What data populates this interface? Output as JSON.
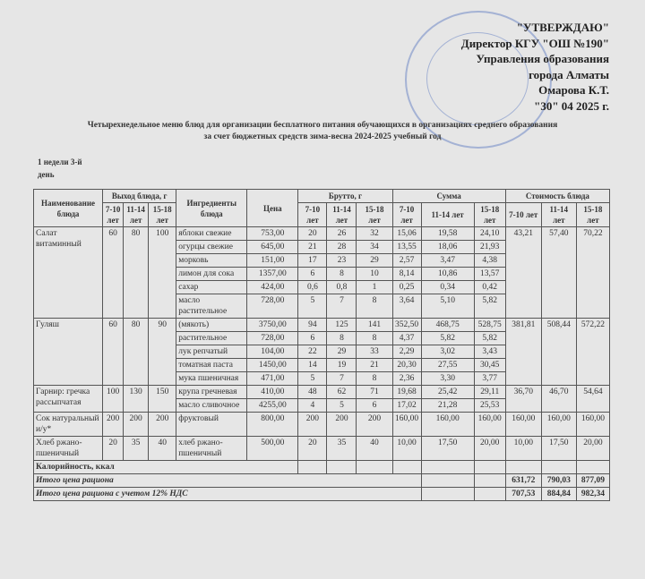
{
  "approval": {
    "line1": "\"УТВЕРЖДАЮ\"",
    "line2": "Директор КГУ \"ОШ №190\"",
    "line3": "Управления образования",
    "line4": "города Алматы",
    "line5": "Омарова К.Т.",
    "line6": "\"30\" 04 2025 г."
  },
  "title": {
    "line1": "Четырехнедельное меню блюд для организации бесплатного питания обучающихся в организациях среднего образования",
    "line2": "за счет бюджетных средств зима-весна 2024-2025 учебный год"
  },
  "day_label": "1 недели 3-й день",
  "headers": {
    "name": "Наименование блюда",
    "output": "Выход блюда, г",
    "ingredients": "Ингредиенты блюда",
    "price": "Цена",
    "brutto": "Брутто, г",
    "sum": "Сумма",
    "cost": "Стоимость блюда",
    "ages": [
      "7-10 лет",
      "11-14 лет",
      "15-18 лет"
    ]
  },
  "dishes": [
    {
      "name": "Салат витаминный",
      "output": [
        "60",
        "80",
        "100"
      ],
      "cost": [
        "43,21",
        "57,40",
        "70,22"
      ],
      "ingredients": [
        {
          "name": "яблоки свежие",
          "price": "753,00",
          "brutto": [
            "20",
            "26",
            "32"
          ],
          "sum": [
            "15,06",
            "19,58",
            "24,10"
          ]
        },
        {
          "name": "огурцы свежие",
          "price": "645,00",
          "brutto": [
            "21",
            "28",
            "34"
          ],
          "sum": [
            "13,55",
            "18,06",
            "21,93"
          ]
        },
        {
          "name": "морковь",
          "price": "151,00",
          "brutto": [
            "17",
            "23",
            "29"
          ],
          "sum": [
            "2,57",
            "3,47",
            "4,38"
          ]
        },
        {
          "name": "лимон для сока",
          "price": "1357,00",
          "brutto": [
            "6",
            "8",
            "10"
          ],
          "sum": [
            "8,14",
            "10,86",
            "13,57"
          ]
        },
        {
          "name": "сахар",
          "price": "424,00",
          "brutto": [
            "0,6",
            "0,8",
            "1"
          ],
          "sum": [
            "0,25",
            "0,34",
            "0,42"
          ]
        },
        {
          "name": "масло растительное",
          "price": "728,00",
          "brutto": [
            "5",
            "7",
            "8"
          ],
          "sum": [
            "3,64",
            "5,10",
            "5,82"
          ]
        }
      ]
    },
    {
      "name": "Гуляш",
      "output": [
        "60",
        "80",
        "90"
      ],
      "cost": [
        "381,81",
        "508,44",
        "572,22"
      ],
      "ingredients": [
        {
          "name": "(мякоть)",
          "price": "3750,00",
          "brutto": [
            "94",
            "125",
            "141"
          ],
          "sum": [
            "352,50",
            "468,75",
            "528,75"
          ]
        },
        {
          "name": "растительное",
          "price": "728,00",
          "brutto": [
            "6",
            "8",
            "8"
          ],
          "sum": [
            "4,37",
            "5,82",
            "5,82"
          ]
        },
        {
          "name": "лук репчатый",
          "price": "104,00",
          "brutto": [
            "22",
            "29",
            "33"
          ],
          "sum": [
            "2,29",
            "3,02",
            "3,43"
          ]
        },
        {
          "name": "томатная паста",
          "price": "1450,00",
          "brutto": [
            "14",
            "19",
            "21"
          ],
          "sum": [
            "20,30",
            "27,55",
            "30,45"
          ]
        },
        {
          "name": "мука пшеничная",
          "price": "471,00",
          "brutto": [
            "5",
            "7",
            "8"
          ],
          "sum": [
            "2,36",
            "3,30",
            "3,77"
          ]
        }
      ]
    },
    {
      "name": "Гарнир: гречка рассыпчатая",
      "output": [
        "100",
        "130",
        "150"
      ],
      "cost": [
        "36,70",
        "46,70",
        "54,64"
      ],
      "ingredients": [
        {
          "name": "крупа гречневая",
          "price": "410,00",
          "brutto": [
            "48",
            "62",
            "71"
          ],
          "sum": [
            "19,68",
            "25,42",
            "29,11"
          ]
        },
        {
          "name": "масло сливочное",
          "price": "4255,00",
          "brutto": [
            "4",
            "5",
            "6"
          ],
          "sum": [
            "17,02",
            "21,28",
            "25,53"
          ]
        }
      ]
    },
    {
      "name": "Сок натуральный и/у*",
      "output": [
        "200",
        "200",
        "200"
      ],
      "cost": [
        "160,00",
        "160,00",
        "160,00"
      ],
      "ingredients": [
        {
          "name": "фруктовый",
          "price": "800,00",
          "brutto": [
            "200",
            "200",
            "200"
          ],
          "sum": [
            "160,00",
            "160,00",
            "160,00"
          ]
        }
      ]
    },
    {
      "name": "Хлеб ржано-пшеничный",
      "output": [
        "20",
        "35",
        "40"
      ],
      "cost": [
        "10,00",
        "17,50",
        "20,00"
      ],
      "ingredients": [
        {
          "name": "хлеб ржано-пшеничный",
          "price": "500,00",
          "brutto": [
            "20",
            "35",
            "40"
          ],
          "sum": [
            "10,00",
            "17,50",
            "20,00"
          ]
        }
      ]
    }
  ],
  "calories_label": "Калорийность, ккал",
  "total": {
    "label": "Итого цена рациона",
    "values": [
      "631,72",
      "790,03",
      "877,09"
    ]
  },
  "total_vat": {
    "label": "Итого цена рациона с учетом 12% НДС",
    "values": [
      "707,53",
      "884,84",
      "982,34"
    ]
  }
}
